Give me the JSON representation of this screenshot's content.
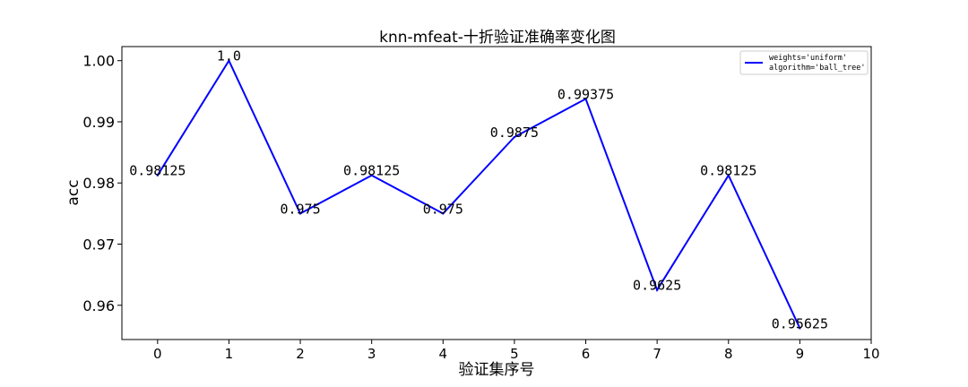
{
  "chart_data": {
    "type": "line",
    "title": "knn-mfeat-十折验证准确率变化图",
    "xlabel": "验证集序号",
    "ylabel": "acc",
    "x": [
      0,
      1,
      2,
      3,
      4,
      5,
      6,
      7,
      8,
      9
    ],
    "series": [
      {
        "name": "weights='uniform'\nalgorithm='ball_tree'",
        "legend_lines": [
          "weights='uniform'",
          "algorithm='ball_tree'"
        ],
        "color": "#0000ff",
        "values": [
          0.98125,
          1.0,
          0.975,
          0.98125,
          0.975,
          0.9875,
          0.99375,
          0.9625,
          0.98125,
          0.95625
        ],
        "point_labels": [
          "0.98125",
          "1.0",
          "0.975",
          "0.98125",
          "0.975",
          "0.9875",
          "0.99375",
          "0.9625",
          "0.98125",
          "0.95625"
        ]
      }
    ],
    "xlim": [
      -0.5,
      10
    ],
    "ylim": [
      0.9544,
      1.0023
    ],
    "xticks": [
      0,
      1,
      2,
      3,
      4,
      5,
      6,
      7,
      8,
      9,
      10
    ],
    "xtick_labels": [
      "0",
      "1",
      "2",
      "3",
      "4",
      "5",
      "6",
      "7",
      "8",
      "9",
      "10"
    ],
    "yticks": [
      0.96,
      0.97,
      0.98,
      0.99,
      1.0
    ],
    "ytick_labels": [
      "0.96",
      "0.97",
      "0.98",
      "0.99",
      "1.00"
    ],
    "grid": false,
    "legend_position": "top-right"
  }
}
